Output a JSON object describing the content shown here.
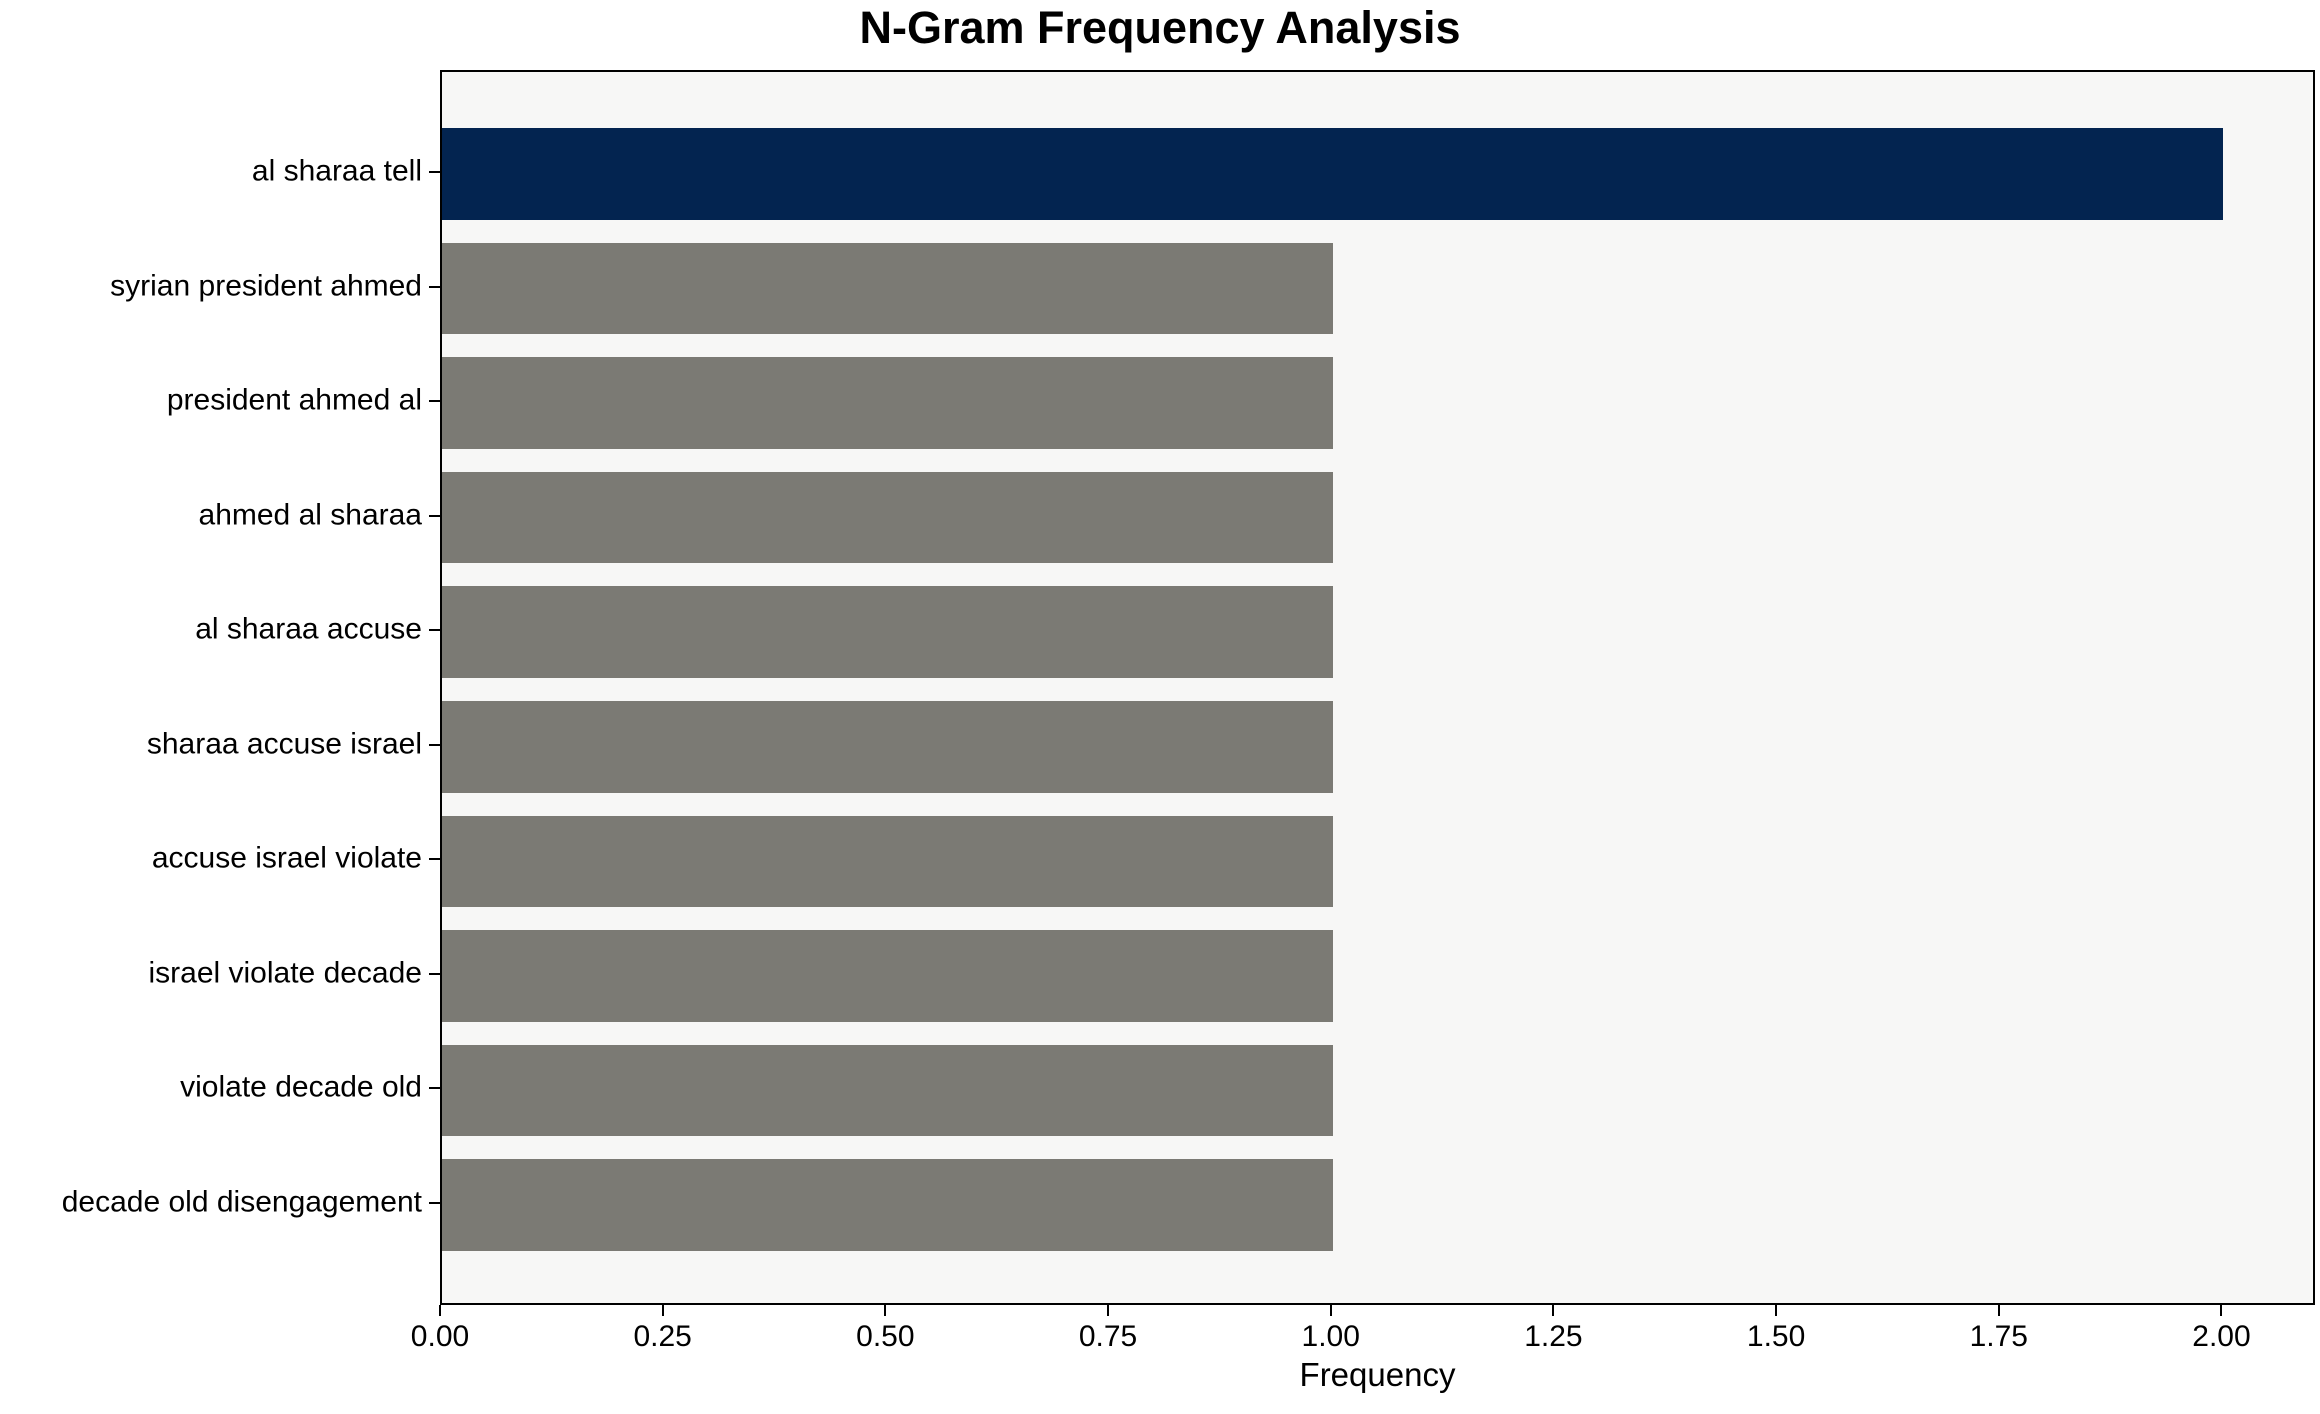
{
  "chart_data": {
    "type": "bar",
    "orientation": "horizontal",
    "title": "N-Gram Frequency Analysis",
    "xlabel": "Frequency",
    "ylabel": "",
    "categories": [
      "al sharaa tell",
      "syrian president ahmed",
      "president ahmed al",
      "ahmed al sharaa",
      "al sharaa accuse",
      "sharaa accuse israel",
      "accuse israel violate",
      "israel violate decade",
      "violate decade old",
      "decade old disengagement"
    ],
    "values": [
      2.0,
      1.0,
      1.0,
      1.0,
      1.0,
      1.0,
      1.0,
      1.0,
      1.0,
      1.0
    ],
    "bar_colors": [
      "#032450",
      "#7b7a74",
      "#7b7a74",
      "#7b7a74",
      "#7b7a74",
      "#7b7a74",
      "#7b7a74",
      "#7b7a74",
      "#7b7a74",
      "#7b7a74"
    ],
    "x_tick_labels": [
      "0.00",
      "0.25",
      "0.50",
      "0.75",
      "1.00",
      "1.25",
      "1.50",
      "1.75",
      "2.00"
    ],
    "x_tick_values": [
      0,
      0.25,
      0.5,
      0.75,
      1.0,
      1.25,
      1.5,
      1.75,
      2.0
    ],
    "xlim": [
      0,
      2.105
    ],
    "grid": false,
    "legend_position": "none",
    "colors": {
      "highlight_bar": "#032450",
      "default_bar": "#7b7a74",
      "plot_background": "#f7f7f6",
      "figure_background": "#ffffff",
      "axis_text": "#000000"
    }
  }
}
